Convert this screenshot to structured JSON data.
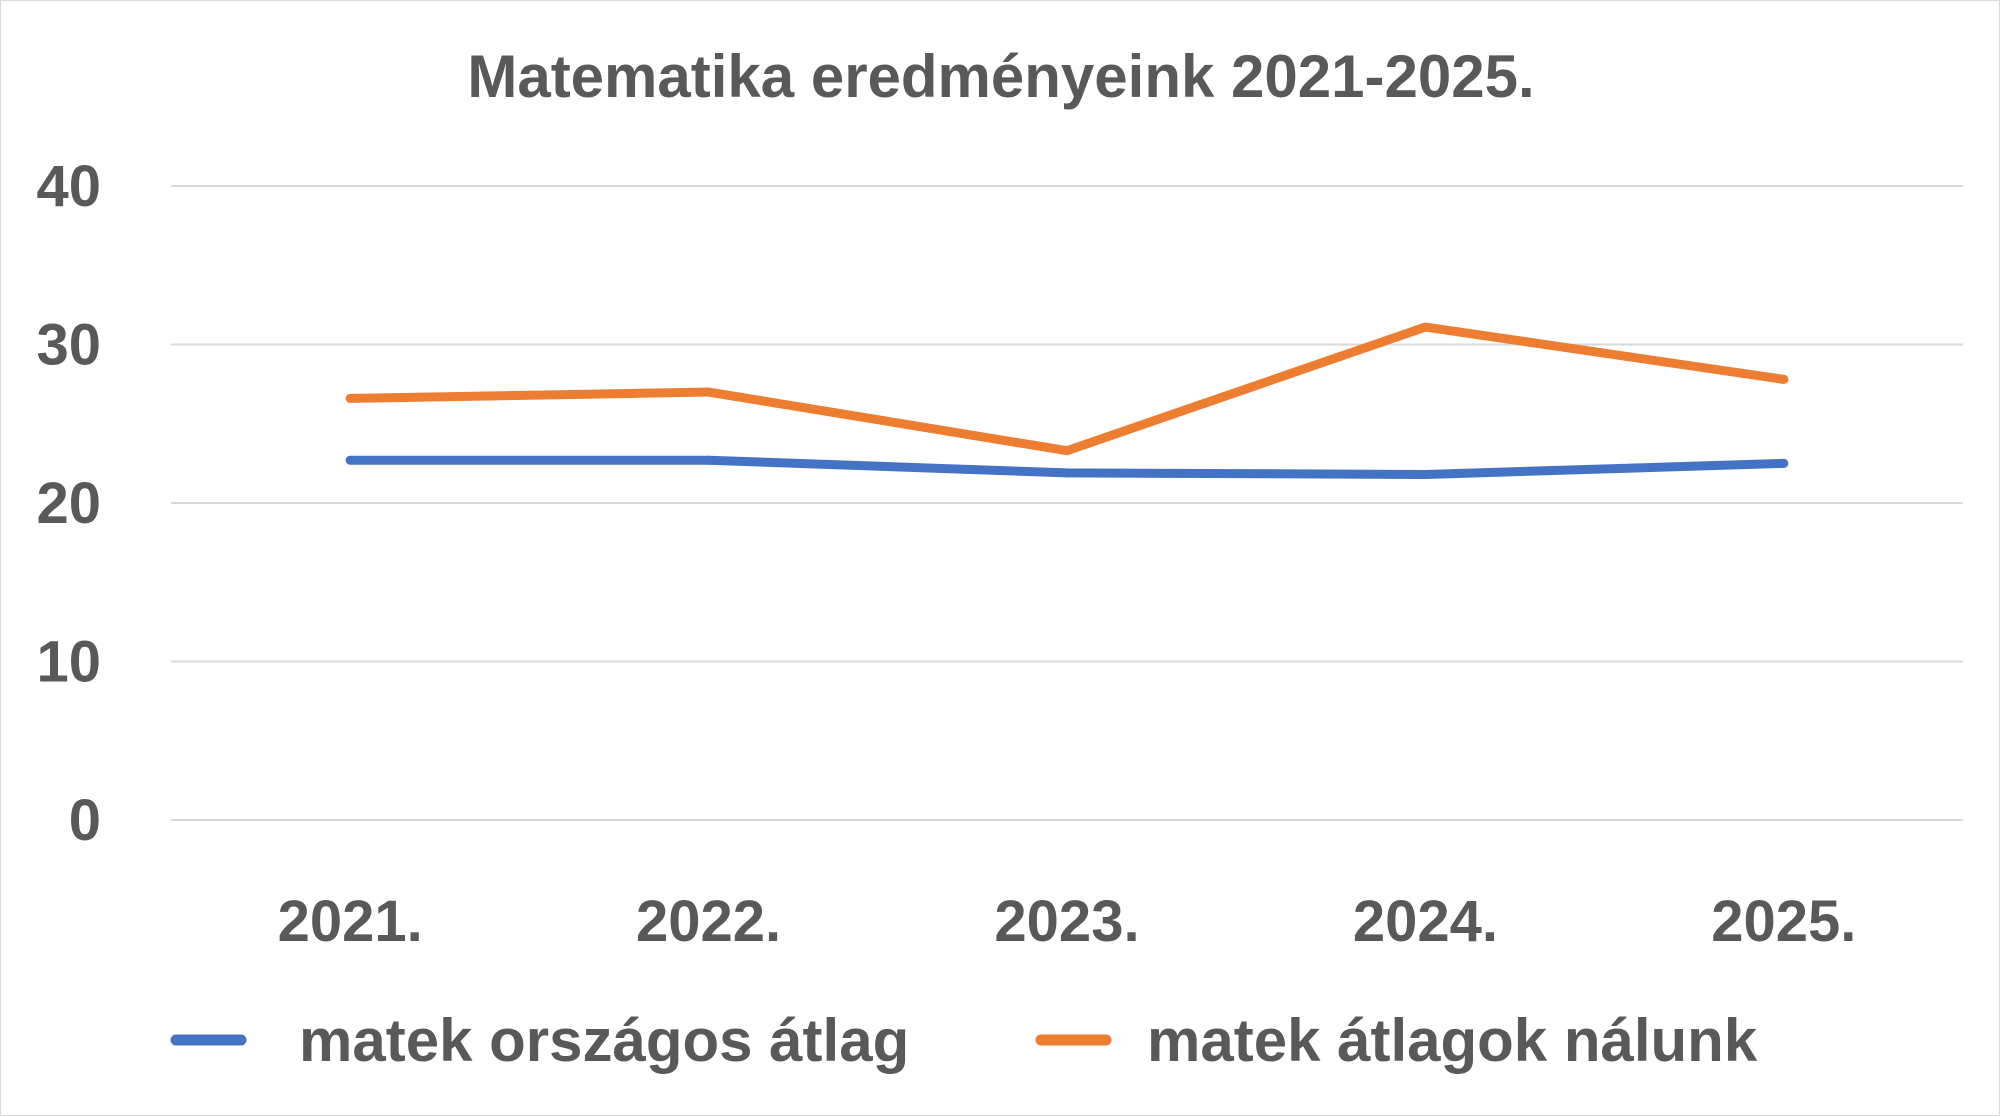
{
  "chart_data": {
    "type": "line",
    "title": "Matematika eredményeink 2021-2025.",
    "xlabel": "",
    "ylabel": "",
    "categories": [
      "2021.",
      "2022.",
      "2023.",
      "2024.",
      "2025."
    ],
    "ylim": [
      0,
      40
    ],
    "yticks": [
      0,
      10,
      20,
      30,
      40
    ],
    "grid": true,
    "legend_position": "bottom",
    "series": [
      {
        "name": "matek országos átlag",
        "color": "#4472c4",
        "values": [
          22.7,
          22.7,
          21.9,
          21.8,
          22.5
        ]
      },
      {
        "name": "matek átlagok nálunk",
        "color": "#ed7d31",
        "values": [
          26.6,
          27.0,
          23.3,
          31.1,
          27.8
        ]
      }
    ]
  }
}
